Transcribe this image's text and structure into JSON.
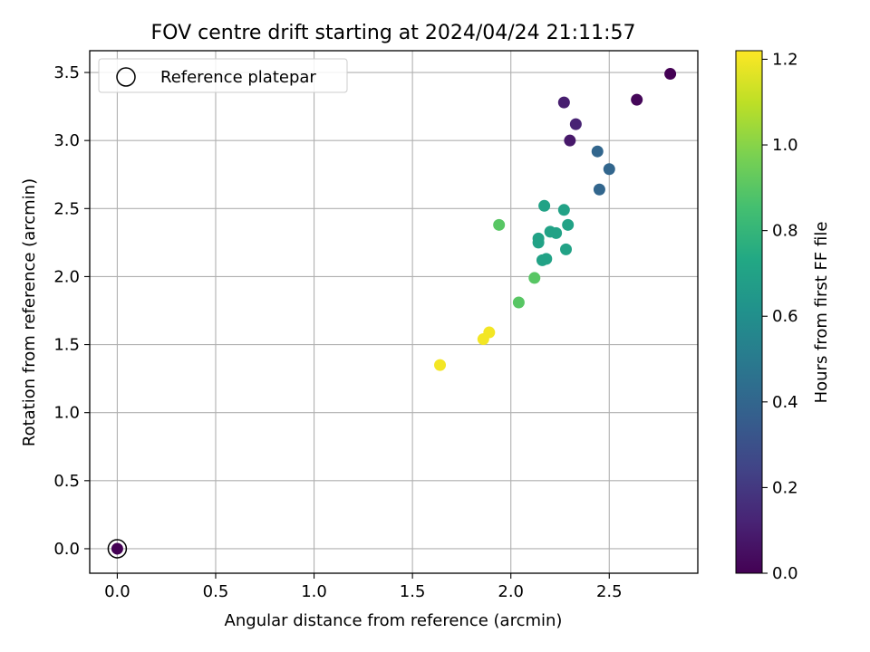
{
  "chart_data": {
    "type": "scatter",
    "title": "FOV centre drift starting at 2024/04/24 21:11:57",
    "xlabel": "Angular distance from reference (arcmin)",
    "ylabel": "Rotation from reference (arcmin)",
    "xlim": [
      -0.14,
      2.95
    ],
    "ylim": [
      -0.18,
      3.66
    ],
    "xticks": [
      0.0,
      0.5,
      1.0,
      1.5,
      2.0,
      2.5
    ],
    "xtick_labels": [
      "0.0",
      "0.5",
      "1.0",
      "1.5",
      "2.0",
      "2.5"
    ],
    "yticks": [
      0.0,
      0.5,
      1.0,
      1.5,
      2.0,
      2.5,
      3.0,
      3.5
    ],
    "ytick_labels": [
      "0.0",
      "0.5",
      "1.0",
      "1.5",
      "2.0",
      "2.5",
      "3.0",
      "3.5"
    ],
    "grid": true,
    "legend": {
      "position": "top-left",
      "entries": [
        "Reference platepar"
      ]
    },
    "colorbar": {
      "label": "Hours from first FF file",
      "range": [
        0.0,
        1.22
      ],
      "ticks": [
        0.0,
        0.2,
        0.4,
        0.6,
        0.8,
        1.0,
        1.2
      ],
      "tick_labels": [
        "0.0",
        "0.2",
        "0.4",
        "0.6",
        "0.8",
        "1.0",
        "1.2"
      ],
      "colormap": "viridis"
    },
    "reference_point": {
      "x": 0.0,
      "y": 0.0
    },
    "points": [
      {
        "x": 0.0,
        "y": 0.0,
        "c": 0.0
      },
      {
        "x": 2.81,
        "y": 3.49,
        "c": 0.0
      },
      {
        "x": 2.64,
        "y": 3.3,
        "c": 0.02
      },
      {
        "x": 2.27,
        "y": 3.28,
        "c": 0.1
      },
      {
        "x": 2.33,
        "y": 3.12,
        "c": 0.12
      },
      {
        "x": 2.3,
        "y": 3.0,
        "c": 0.08
      },
      {
        "x": 2.44,
        "y": 2.92,
        "c": 0.4
      },
      {
        "x": 2.5,
        "y": 2.79,
        "c": 0.4
      },
      {
        "x": 2.45,
        "y": 2.64,
        "c": 0.4
      },
      {
        "x": 2.17,
        "y": 2.52,
        "c": 0.7
      },
      {
        "x": 2.27,
        "y": 2.49,
        "c": 0.7
      },
      {
        "x": 2.29,
        "y": 2.38,
        "c": 0.7
      },
      {
        "x": 2.2,
        "y": 2.33,
        "c": 0.7
      },
      {
        "x": 2.23,
        "y": 2.32,
        "c": 0.7
      },
      {
        "x": 2.14,
        "y": 2.28,
        "c": 0.7
      },
      {
        "x": 2.14,
        "y": 2.25,
        "c": 0.7
      },
      {
        "x": 2.28,
        "y": 2.2,
        "c": 0.7
      },
      {
        "x": 2.16,
        "y": 2.12,
        "c": 0.7
      },
      {
        "x": 2.18,
        "y": 2.13,
        "c": 0.7
      },
      {
        "x": 1.94,
        "y": 2.38,
        "c": 0.9
      },
      {
        "x": 2.12,
        "y": 1.99,
        "c": 0.9
      },
      {
        "x": 2.04,
        "y": 1.81,
        "c": 0.9
      },
      {
        "x": 1.89,
        "y": 1.59,
        "c": 1.2
      },
      {
        "x": 1.86,
        "y": 1.54,
        "c": 1.2
      },
      {
        "x": 1.64,
        "y": 1.35,
        "c": 1.2
      }
    ]
  }
}
